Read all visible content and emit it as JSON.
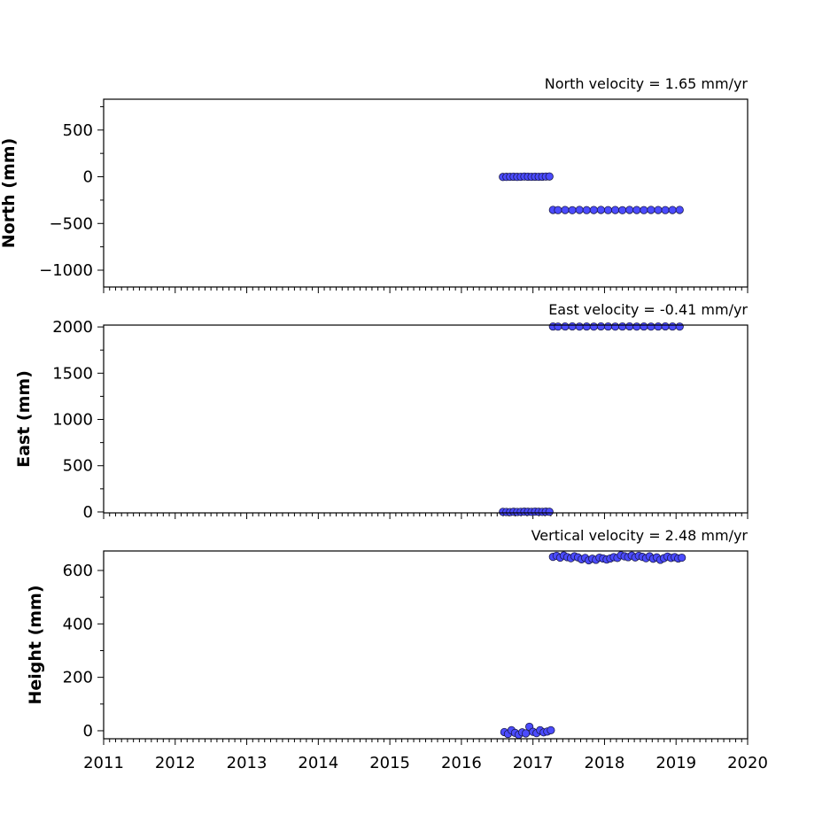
{
  "chart_data": [
    {
      "type": "scatter",
      "title": "North velocity = 1.65 mm/yr",
      "xlabel": "",
      "ylabel": "North (mm)",
      "xlim": [
        2011,
        2020
      ],
      "ylim": [
        -1180,
        830
      ],
      "yticks": [
        500,
        0,
        -500,
        -1000
      ],
      "ytick_labels": [
        "500",
        "0",
        "−500",
        "−1000"
      ],
      "x": [
        2016.58,
        2016.63,
        2016.68,
        2016.73,
        2016.78,
        2016.83,
        2016.88,
        2016.93,
        2016.98,
        2017.03,
        2017.08,
        2017.13,
        2017.18,
        2017.23,
        2017.28,
        2017.35,
        2017.45,
        2017.55,
        2017.65,
        2017.75,
        2017.85,
        2017.95,
        2018.05,
        2018.15,
        2018.25,
        2018.35,
        2018.45,
        2018.55,
        2018.65,
        2018.75,
        2018.85,
        2018.95,
        2019.05
      ],
      "y": [
        -2,
        -1,
        0,
        1,
        -1,
        0,
        2,
        1,
        0,
        1,
        0,
        1,
        2,
        3,
        -355,
        -357,
        -356,
        -358,
        -355,
        -357,
        -356,
        -355,
        -357,
        -356,
        -358,
        -355,
        -356,
        -357,
        -355,
        -356,
        -357,
        -356,
        -355
      ]
    },
    {
      "type": "scatter",
      "title": "East velocity = -0.41 mm/yr",
      "xlabel": "",
      "ylabel": "East (mm)",
      "xlim": [
        2011,
        2020
      ],
      "ylim": [
        -10,
        2020
      ],
      "yticks": [
        2000,
        1500,
        1000,
        500,
        0
      ],
      "ytick_labels": [
        "2000",
        "1500",
        "1000",
        "500",
        "0"
      ],
      "x": [
        2016.58,
        2016.63,
        2016.68,
        2016.73,
        2016.78,
        2016.83,
        2016.88,
        2016.93,
        2016.98,
        2017.03,
        2017.08,
        2017.13,
        2017.18,
        2017.23,
        2017.28,
        2017.35,
        2017.45,
        2017.55,
        2017.65,
        2017.75,
        2017.85,
        2017.95,
        2018.05,
        2018.15,
        2018.25,
        2018.35,
        2018.45,
        2018.55,
        2018.65,
        2018.75,
        2018.85,
        2018.95,
        2019.05
      ],
      "y": [
        1,
        0,
        -1,
        2,
        0,
        1,
        3,
        2,
        1,
        4,
        2,
        1,
        3,
        2,
        2005,
        2004,
        2005,
        2006,
        2004,
        2005,
        2004,
        2006,
        2005,
        2004,
        2005,
        2006,
        2004,
        2005,
        2004,
        2005,
        2006,
        2005,
        2004
      ]
    },
    {
      "type": "scatter",
      "title": "Vertical velocity = 2.48 mm/yr",
      "xlabel": "",
      "ylabel": "Height (mm)",
      "xlim": [
        2011,
        2020
      ],
      "ylim": [
        -30,
        673
      ],
      "yticks": [
        600,
        400,
        200,
        0
      ],
      "ytick_labels": [
        "600",
        "400",
        "200",
        "0"
      ],
      "x_ticks": [
        "2011",
        "2012",
        "2013",
        "2014",
        "2015",
        "2016",
        "2017",
        "2018",
        "2019",
        "2020"
      ],
      "x": [
        2016.6,
        2016.65,
        2016.7,
        2016.75,
        2016.8,
        2016.85,
        2016.9,
        2016.95,
        2017.0,
        2017.05,
        2017.1,
        2017.15,
        2017.2,
        2017.25,
        2017.28,
        2017.33,
        2017.38,
        2017.43,
        2017.48,
        2017.53,
        2017.58,
        2017.63,
        2017.68,
        2017.73,
        2017.78,
        2017.83,
        2017.88,
        2017.93,
        2017.98,
        2018.03,
        2018.08,
        2018.13,
        2018.18,
        2018.23,
        2018.28,
        2018.33,
        2018.38,
        2018.43,
        2018.48,
        2018.53,
        2018.58,
        2018.63,
        2018.68,
        2018.73,
        2018.78,
        2018.83,
        2018.88,
        2018.93,
        2018.98,
        2019.03,
        2019.08
      ],
      "y": [
        -5,
        -12,
        2,
        -8,
        -15,
        -6,
        -10,
        15,
        -4,
        -9,
        2,
        -6,
        -3,
        2,
        651,
        655,
        648,
        656,
        650,
        646,
        653,
        649,
        642,
        647,
        638,
        644,
        640,
        648,
        645,
        641,
        645,
        650,
        647,
        657,
        653,
        650,
        656,
        649,
        655,
        651,
        646,
        653,
        644,
        649,
        640,
        646,
        652,
        647,
        650,
        645,
        648
      ]
    }
  ],
  "colors": {
    "marker_fill": "#4b4bff",
    "marker_edge": "#1a1a4a"
  }
}
